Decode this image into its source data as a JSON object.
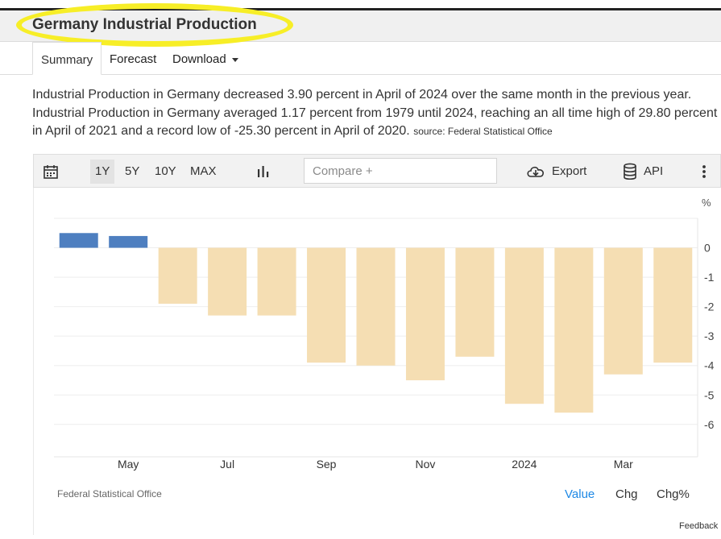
{
  "header": {
    "title": "Germany Industrial Production"
  },
  "tabs": [
    {
      "label": "Summary",
      "active": true
    },
    {
      "label": "Forecast"
    },
    {
      "label": "Download"
    }
  ],
  "description": {
    "lines": [
      "Industrial Production in Germany decreased 3.90 percent in April of 2024 over the same month in the previous year.",
      "Industrial Production in Germany averaged 1.17 percent from 1979 until 2024, reaching an all time high of 29.80 percent",
      "in April of 2021 and a record low of -25.30 percent in April of 2020."
    ],
    "source": "source: Federal Statistical Office"
  },
  "toolbar": {
    "calendar_icon": "calendar-icon",
    "ranges": [
      "1Y",
      "5Y",
      "10Y",
      "MAX"
    ],
    "active_range": "1Y",
    "chart_type_icon": "bar-chart-icon",
    "compare_placeholder": "Compare +",
    "export_label": "Export",
    "export_icon": "cloud-download-icon",
    "api_label": "API",
    "api_icon": "database-icon",
    "more_icon": "vertical-dots-icon"
  },
  "chart_data": {
    "type": "bar",
    "unit_label": "%",
    "categories": [
      "2023-04",
      "2023-05",
      "2023-06",
      "2023-07",
      "2023-08",
      "2023-09",
      "2023-10",
      "2023-11",
      "2023-12",
      "2024-01",
      "2024-02",
      "2024-03",
      "2024-04"
    ],
    "values": [
      0.5,
      0.4,
      -1.9,
      -2.3,
      -2.3,
      -3.9,
      -4.0,
      -4.5,
      -3.7,
      -5.3,
      -5.6,
      -4.3,
      -3.9
    ],
    "x_tick_labels": [
      {
        "label": "May",
        "index": 1
      },
      {
        "label": "Jul",
        "index": 3
      },
      {
        "label": "Sep",
        "index": 5
      },
      {
        "label": "Nov",
        "index": 7
      },
      {
        "label": "2024",
        "index": 9
      },
      {
        "label": "Mar",
        "index": 11
      }
    ],
    "y_ticks": [
      0,
      -1,
      -2,
      -3,
      -4,
      -5,
      -6
    ],
    "ylim": [
      -7.1,
      1.0
    ],
    "colors": {
      "positive": "#4e7fc0",
      "negative": "#f5deb3"
    },
    "grid": true,
    "source_label": "Federal Statistical Office"
  },
  "chart_modes": [
    {
      "label": "Value",
      "active": true
    },
    {
      "label": "Chg"
    },
    {
      "label": "Chg%"
    }
  ],
  "feedback_label": "Feedback"
}
